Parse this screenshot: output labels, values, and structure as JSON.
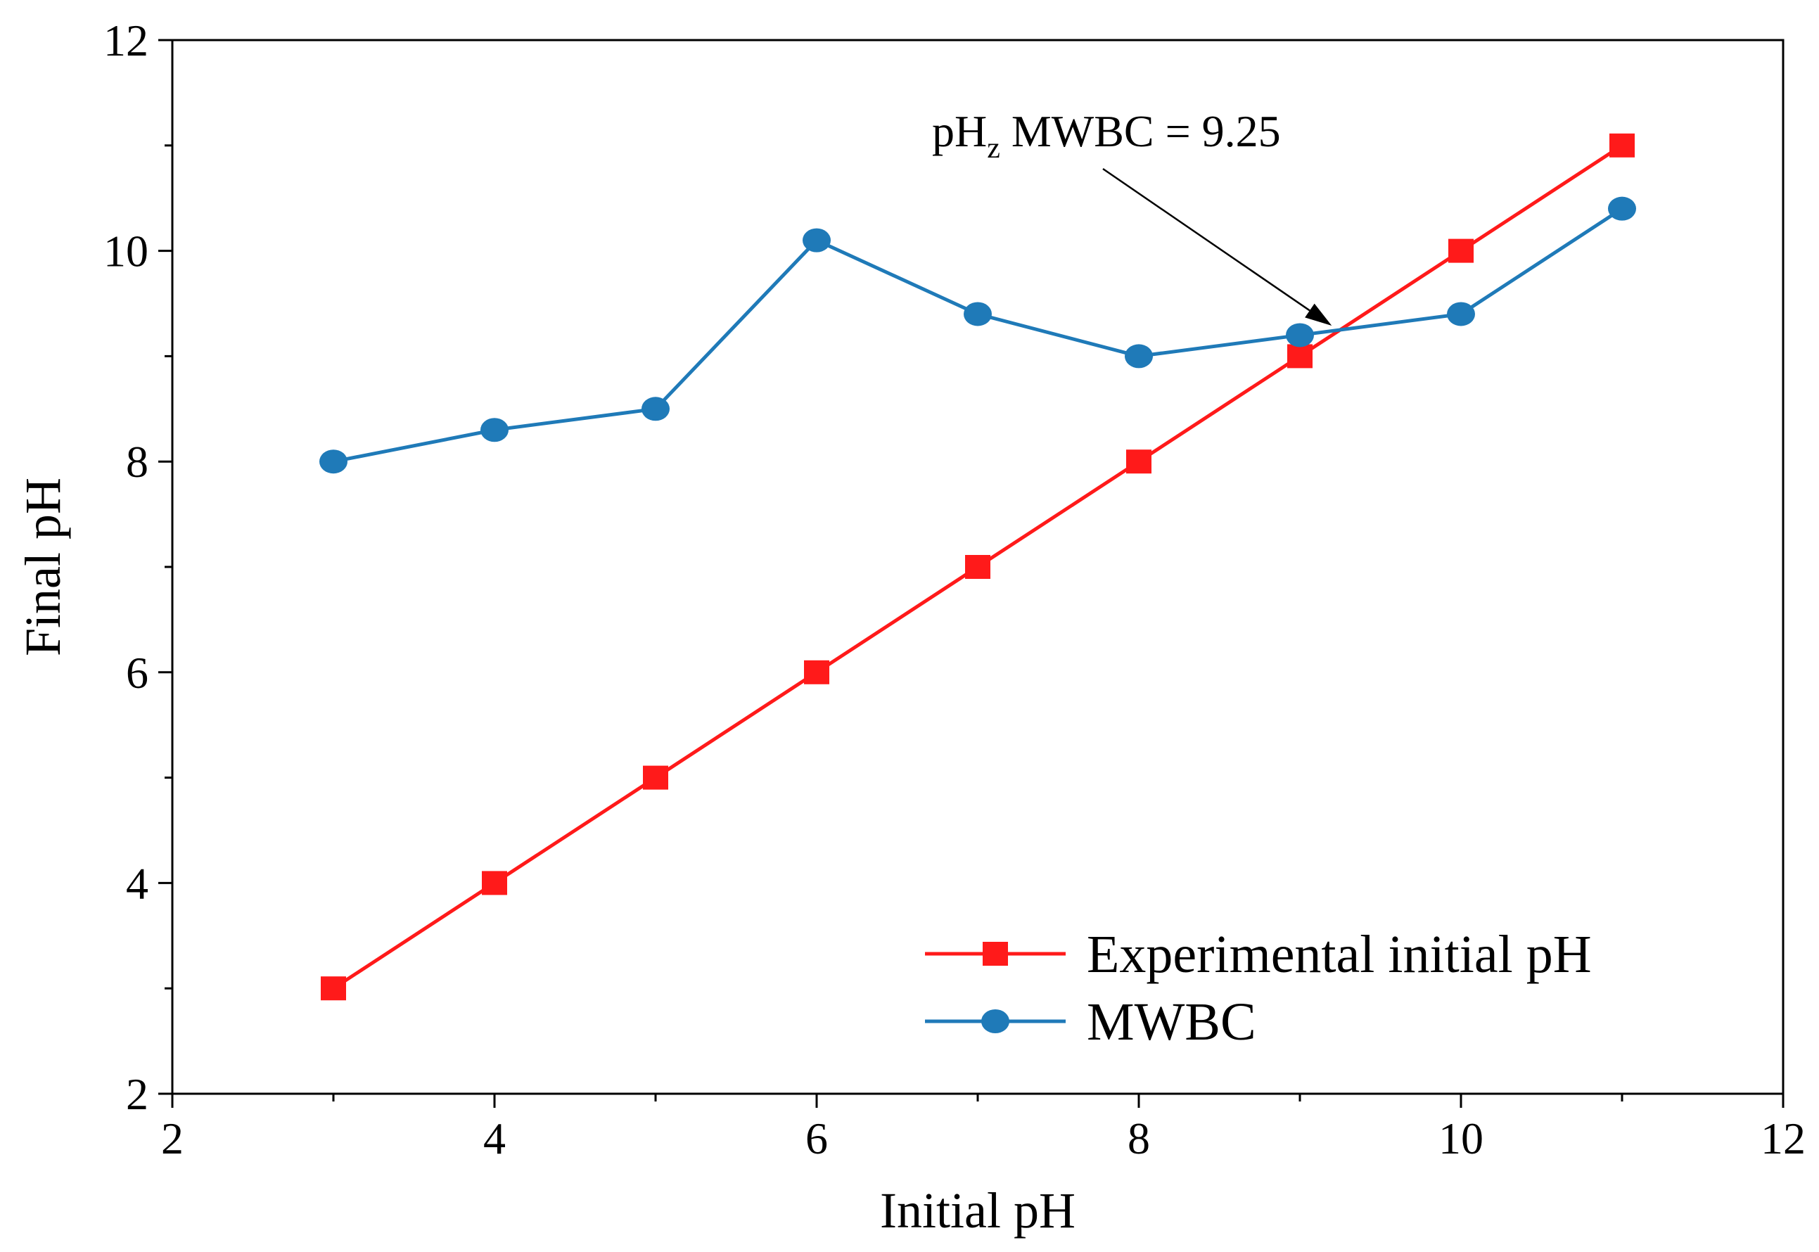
{
  "chart_data": {
    "type": "line",
    "xlabel": "Initial pH",
    "ylabel": "Final pH",
    "xlim": [
      2,
      12
    ],
    "ylim": [
      2,
      12
    ],
    "xticks": [
      2,
      4,
      6,
      8,
      10,
      12
    ],
    "yticks": [
      2,
      4,
      6,
      8,
      10,
      12
    ],
    "grid": false,
    "legend_position": "bottom-right",
    "x": [
      3,
      4,
      5,
      6,
      7,
      8,
      9,
      10,
      11
    ],
    "series": [
      {
        "name": "Experimental initial pH",
        "color": "#ff1a1a",
        "marker": "square",
        "values": [
          3,
          4,
          5,
          6,
          7,
          8,
          9,
          10,
          11
        ]
      },
      {
        "name": "MWBC",
        "color": "#1f7ab8",
        "marker": "circle",
        "values": [
          8.0,
          8.3,
          8.5,
          10.1,
          9.4,
          9.0,
          9.2,
          9.4,
          10.4
        ]
      }
    ],
    "annotation": {
      "text_main": "pH",
      "text_sub": "z",
      "text_rest": " MWBC = 9.25",
      "point": [
        9.25,
        9.25
      ],
      "text_anchor": [
        6.95,
        11.35
      ]
    }
  }
}
